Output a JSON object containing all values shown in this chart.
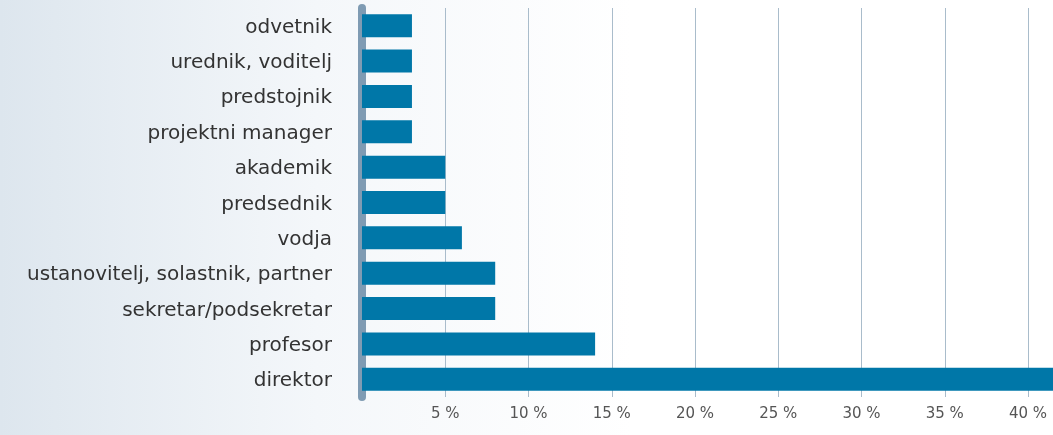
{
  "chart_data": {
    "type": "bar",
    "orientation": "horizontal",
    "categories": [
      "odvetnik",
      "urednik, voditelj",
      "predstojnik",
      "projektni manager",
      "akademik",
      "predsednik",
      "vodja",
      "ustanovitelj, solastnik, partner",
      "sekretar/podsekretar",
      "profesor",
      "direktor"
    ],
    "values": [
      3,
      3,
      3,
      3,
      5,
      5,
      6,
      8,
      8,
      14,
      41.5
    ],
    "color": "#0077a8",
    "xlim": [
      0,
      41.5
    ],
    "xticks": [
      {
        "value": 5,
        "label": "5 %"
      },
      {
        "value": 10,
        "label": "10 %"
      },
      {
        "value": 15,
        "label": "15 %"
      },
      {
        "value": 20,
        "label": "20 %"
      },
      {
        "value": 25,
        "label": "25 %"
      },
      {
        "value": 30,
        "label": "30 %"
      },
      {
        "value": 35,
        "label": "35 %"
      },
      {
        "value": 40,
        "label": "40 %"
      }
    ],
    "grid": "x"
  }
}
